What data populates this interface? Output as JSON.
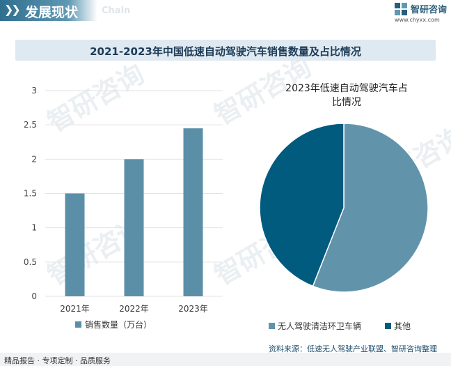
{
  "header": {
    "title": "发展现状",
    "subtitle": "Chain",
    "logo_name": "智研咨询",
    "logo_url": "www.chyxx.com"
  },
  "chart_title": "2021-2023年中国低速自动驾驶汽车销售数量及占比情况",
  "watermark": "智研咨询",
  "chart_data": [
    {
      "type": "bar",
      "title": "",
      "categories": [
        "2021年",
        "2022年",
        "2023年"
      ],
      "series": [
        {
          "name": "销售数量（万台）",
          "values": [
            1.5,
            2.0,
            2.45
          ]
        }
      ],
      "ylim": [
        0,
        3
      ],
      "yticks": [
        "0",
        "0.5",
        "1",
        "1.5",
        "2",
        "2.5",
        "3"
      ],
      "ytick_values": [
        0,
        0.5,
        1,
        1.5,
        2,
        2.5,
        3
      ],
      "grid": true,
      "legend": "bottom",
      "color": "#5b8fa8"
    },
    {
      "type": "pie",
      "title": "2023年低速自动驾驶汽车占比情况",
      "title_line1": "2023年低速自动驾驶汽车占",
      "title_line2": "比情况",
      "labels": [
        "无人驾驶清洁环卫车辆",
        "其他"
      ],
      "values": [
        56,
        44
      ],
      "colors": [
        "#6193ab",
        "#015b7f"
      ],
      "legend": "bottom"
    }
  ],
  "footer": {
    "left": "精品报告 · 专项定制 · 品质服务",
    "source": "资料来源：低速无人驾驶产业联盟、智研咨询整理"
  }
}
